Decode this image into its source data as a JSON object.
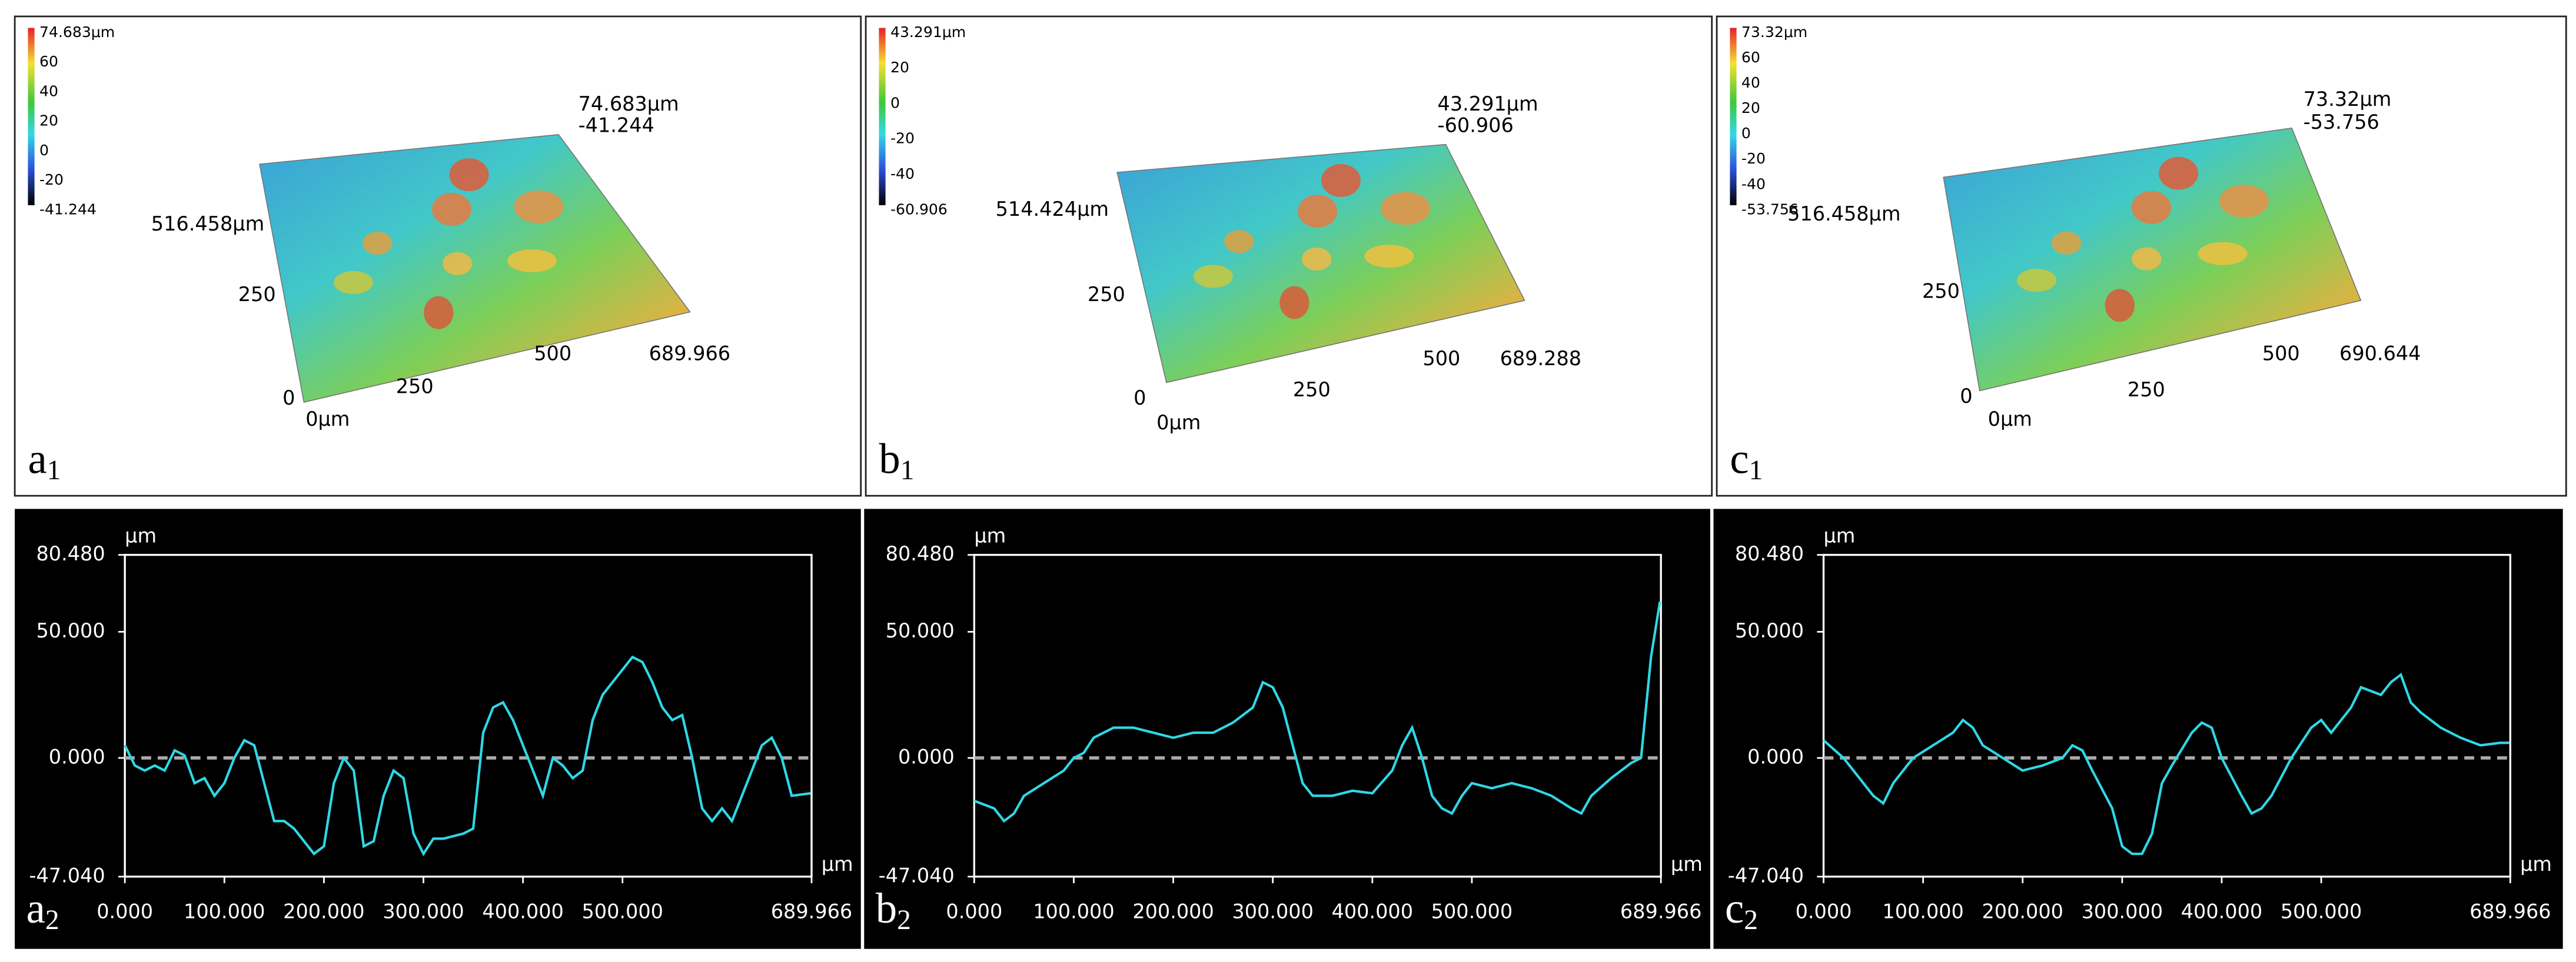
{
  "panels": [
    {
      "label": {
        "letter": "a",
        "sub": "1"
      },
      "colorbar": [
        "74.683μm",
        "60",
        "40",
        "20",
        "0",
        "-20",
        "-41.244"
      ],
      "annotations": [
        "74.683μm",
        "-41.244",
        "516.458μm",
        "250",
        "0",
        "0μm",
        "250",
        "500",
        "689.966"
      ]
    },
    {
      "label": {
        "letter": "b",
        "sub": "1"
      },
      "colorbar": [
        "43.291μm",
        "20",
        "0",
        "-20",
        "-40",
        "-60.906"
      ],
      "annotations": [
        "43.291μm",
        "-60.906",
        "514.424μm",
        "250",
        "0",
        "0μm",
        "250",
        "500",
        "689.288"
      ]
    },
    {
      "label": {
        "letter": "c",
        "sub": "1"
      },
      "colorbar": [
        "73.32μm",
        "60",
        "40",
        "20",
        "0",
        "-20",
        "-40",
        "-53.756"
      ],
      "annotations": [
        "73.32μm",
        "-53.756",
        "516.458μm",
        "250",
        "0",
        "0μm",
        "250",
        "500",
        "690.644"
      ]
    }
  ],
  "chart_data": [
    {
      "type": "line",
      "label": {
        "letter": "a",
        "sub": "2"
      },
      "x_unit": "μm",
      "y_unit": "μm",
      "xlim": [
        0,
        689.966
      ],
      "ylim": [
        -47.04,
        80.48
      ],
      "xticks": [
        {
          "value": 0,
          "label": "0.000"
        },
        {
          "value": 100,
          "label": "100.000"
        },
        {
          "value": 200,
          "label": "200.000"
        },
        {
          "value": 300,
          "label": "300.000"
        },
        {
          "value": 400,
          "label": "400.000"
        },
        {
          "value": 500,
          "label": "500.000"
        },
        689.966
      ],
      "yticks": [
        {
          "value": 80.48,
          "label": "80.480"
        },
        {
          "value": 50,
          "label": "50.000"
        },
        {
          "value": 0,
          "label": "0.000"
        },
        {
          "value": -47.04,
          "label": "-47.040"
        }
      ],
      "zero_line": true,
      "color": "#2fd8e6",
      "x": [
        0,
        10,
        20,
        30,
        40,
        50,
        60,
        70,
        80,
        90,
        100,
        110,
        120,
        130,
        140,
        150,
        160,
        170,
        180,
        190,
        200,
        210,
        220,
        230,
        240,
        250,
        260,
        270,
        280,
        290,
        300,
        310,
        320,
        330,
        340,
        350,
        360,
        370,
        380,
        390,
        400,
        410,
        420,
        430,
        440,
        450,
        460,
        470,
        480,
        490,
        500,
        510,
        520,
        530,
        540,
        550,
        560,
        570,
        580,
        590,
        600,
        610,
        620,
        630,
        640,
        650,
        660,
        670,
        689
      ],
      "values": [
        5,
        -3,
        -5,
        -3,
        -5,
        3,
        1,
        -10,
        -8,
        -15,
        -10,
        0,
        7,
        5,
        -10,
        -25,
        -25,
        -28,
        -33,
        -38,
        -35,
        -10,
        0,
        -5,
        -35,
        -33,
        -15,
        -5,
        -8,
        -30,
        -38,
        -32,
        -32,
        -31,
        -30,
        -28,
        10,
        20,
        22,
        15,
        5,
        -5,
        -15,
        0,
        -3,
        -8,
        -5,
        15,
        25,
        30,
        35,
        40,
        38,
        30,
        20,
        15,
        17,
        0,
        -20,
        -25,
        -20,
        -25,
        -15,
        -5,
        5,
        8,
        0,
        -15,
        -14
      ]
    },
    {
      "type": "line",
      "label": {
        "letter": "b",
        "sub": "2"
      },
      "x_unit": "μm",
      "y_unit": "μm",
      "xlim": [
        0,
        689.966
      ],
      "ylim": [
        -47.04,
        80.48
      ],
      "xticks": [
        {
          "value": 0,
          "label": "0.000"
        },
        {
          "value": 100,
          "label": "100.000"
        },
        {
          "value": 200,
          "label": "200.000"
        },
        {
          "value": 300,
          "label": "300.000"
        },
        {
          "value": 400,
          "label": "400.000"
        },
        {
          "value": 500,
          "label": "500.000"
        },
        689.966
      ],
      "yticks": [
        {
          "value": 80.48,
          "label": "80.480"
        },
        {
          "value": 50,
          "label": "50.000"
        },
        {
          "value": 0,
          "label": "0.000"
        },
        {
          "value": -47.04,
          "label": "-47.040"
        }
      ],
      "zero_line": true,
      "color": "#2fd8e6",
      "x": [
        0,
        20,
        30,
        40,
        50,
        70,
        90,
        100,
        110,
        120,
        140,
        160,
        180,
        200,
        220,
        240,
        260,
        280,
        290,
        300,
        310,
        320,
        330,
        340,
        360,
        380,
        400,
        420,
        430,
        440,
        450,
        460,
        470,
        480,
        490,
        500,
        520,
        540,
        560,
        580,
        600,
        610,
        620,
        640,
        660,
        670,
        680,
        689
      ],
      "values": [
        -17,
        -20,
        -25,
        -22,
        -15,
        -10,
        -5,
        0,
        2,
        8,
        12,
        12,
        10,
        8,
        10,
        10,
        14,
        20,
        30,
        28,
        20,
        5,
        -10,
        -15,
        -15,
        -13,
        -14,
        -5,
        5,
        12,
        0,
        -15,
        -20,
        -22,
        -15,
        -10,
        -12,
        -10,
        -12,
        -15,
        -20,
        -22,
        -15,
        -8,
        -2,
        0,
        40,
        62
      ]
    },
    {
      "type": "line",
      "label": {
        "letter": "c",
        "sub": "2"
      },
      "x_unit": "μm",
      "y_unit": "μm",
      "xlim": [
        0,
        689.966
      ],
      "ylim": [
        -47.04,
        80.48
      ],
      "xticks": [
        {
          "value": 0,
          "label": "0.000"
        },
        {
          "value": 100,
          "label": "100.000"
        },
        {
          "value": 200,
          "label": "200.000"
        },
        {
          "value": 300,
          "label": "300.000"
        },
        {
          "value": 400,
          "label": "400.000"
        },
        {
          "value": 500,
          "label": "500.000"
        },
        689.966
      ],
      "yticks": [
        {
          "value": 80.48,
          "label": "80.480"
        },
        {
          "value": 50,
          "label": "50.000"
        },
        {
          "value": 0,
          "label": "0.000"
        },
        {
          "value": -47.04,
          "label": "-47.040"
        }
      ],
      "zero_line": true,
      "color": "#2fd8e6",
      "x": [
        0,
        20,
        40,
        50,
        60,
        70,
        90,
        110,
        130,
        140,
        150,
        160,
        180,
        200,
        220,
        240,
        250,
        260,
        270,
        290,
        300,
        310,
        320,
        330,
        340,
        350,
        370,
        380,
        390,
        400,
        420,
        430,
        440,
        450,
        470,
        490,
        500,
        510,
        530,
        540,
        560,
        570,
        580,
        590,
        600,
        610,
        620,
        640,
        660,
        680,
        689
      ],
      "values": [
        7,
        0,
        -10,
        -15,
        -18,
        -10,
        0,
        5,
        10,
        15,
        12,
        5,
        0,
        -5,
        -3,
        0,
        5,
        3,
        -5,
        -20,
        -35,
        -38,
        -38,
        -30,
        -10,
        -3,
        10,
        14,
        12,
        0,
        -15,
        -22,
        -20,
        -15,
        0,
        12,
        15,
        10,
        20,
        28,
        25,
        30,
        33,
        22,
        18,
        15,
        12,
        8,
        5,
        6,
        6
      ]
    }
  ]
}
